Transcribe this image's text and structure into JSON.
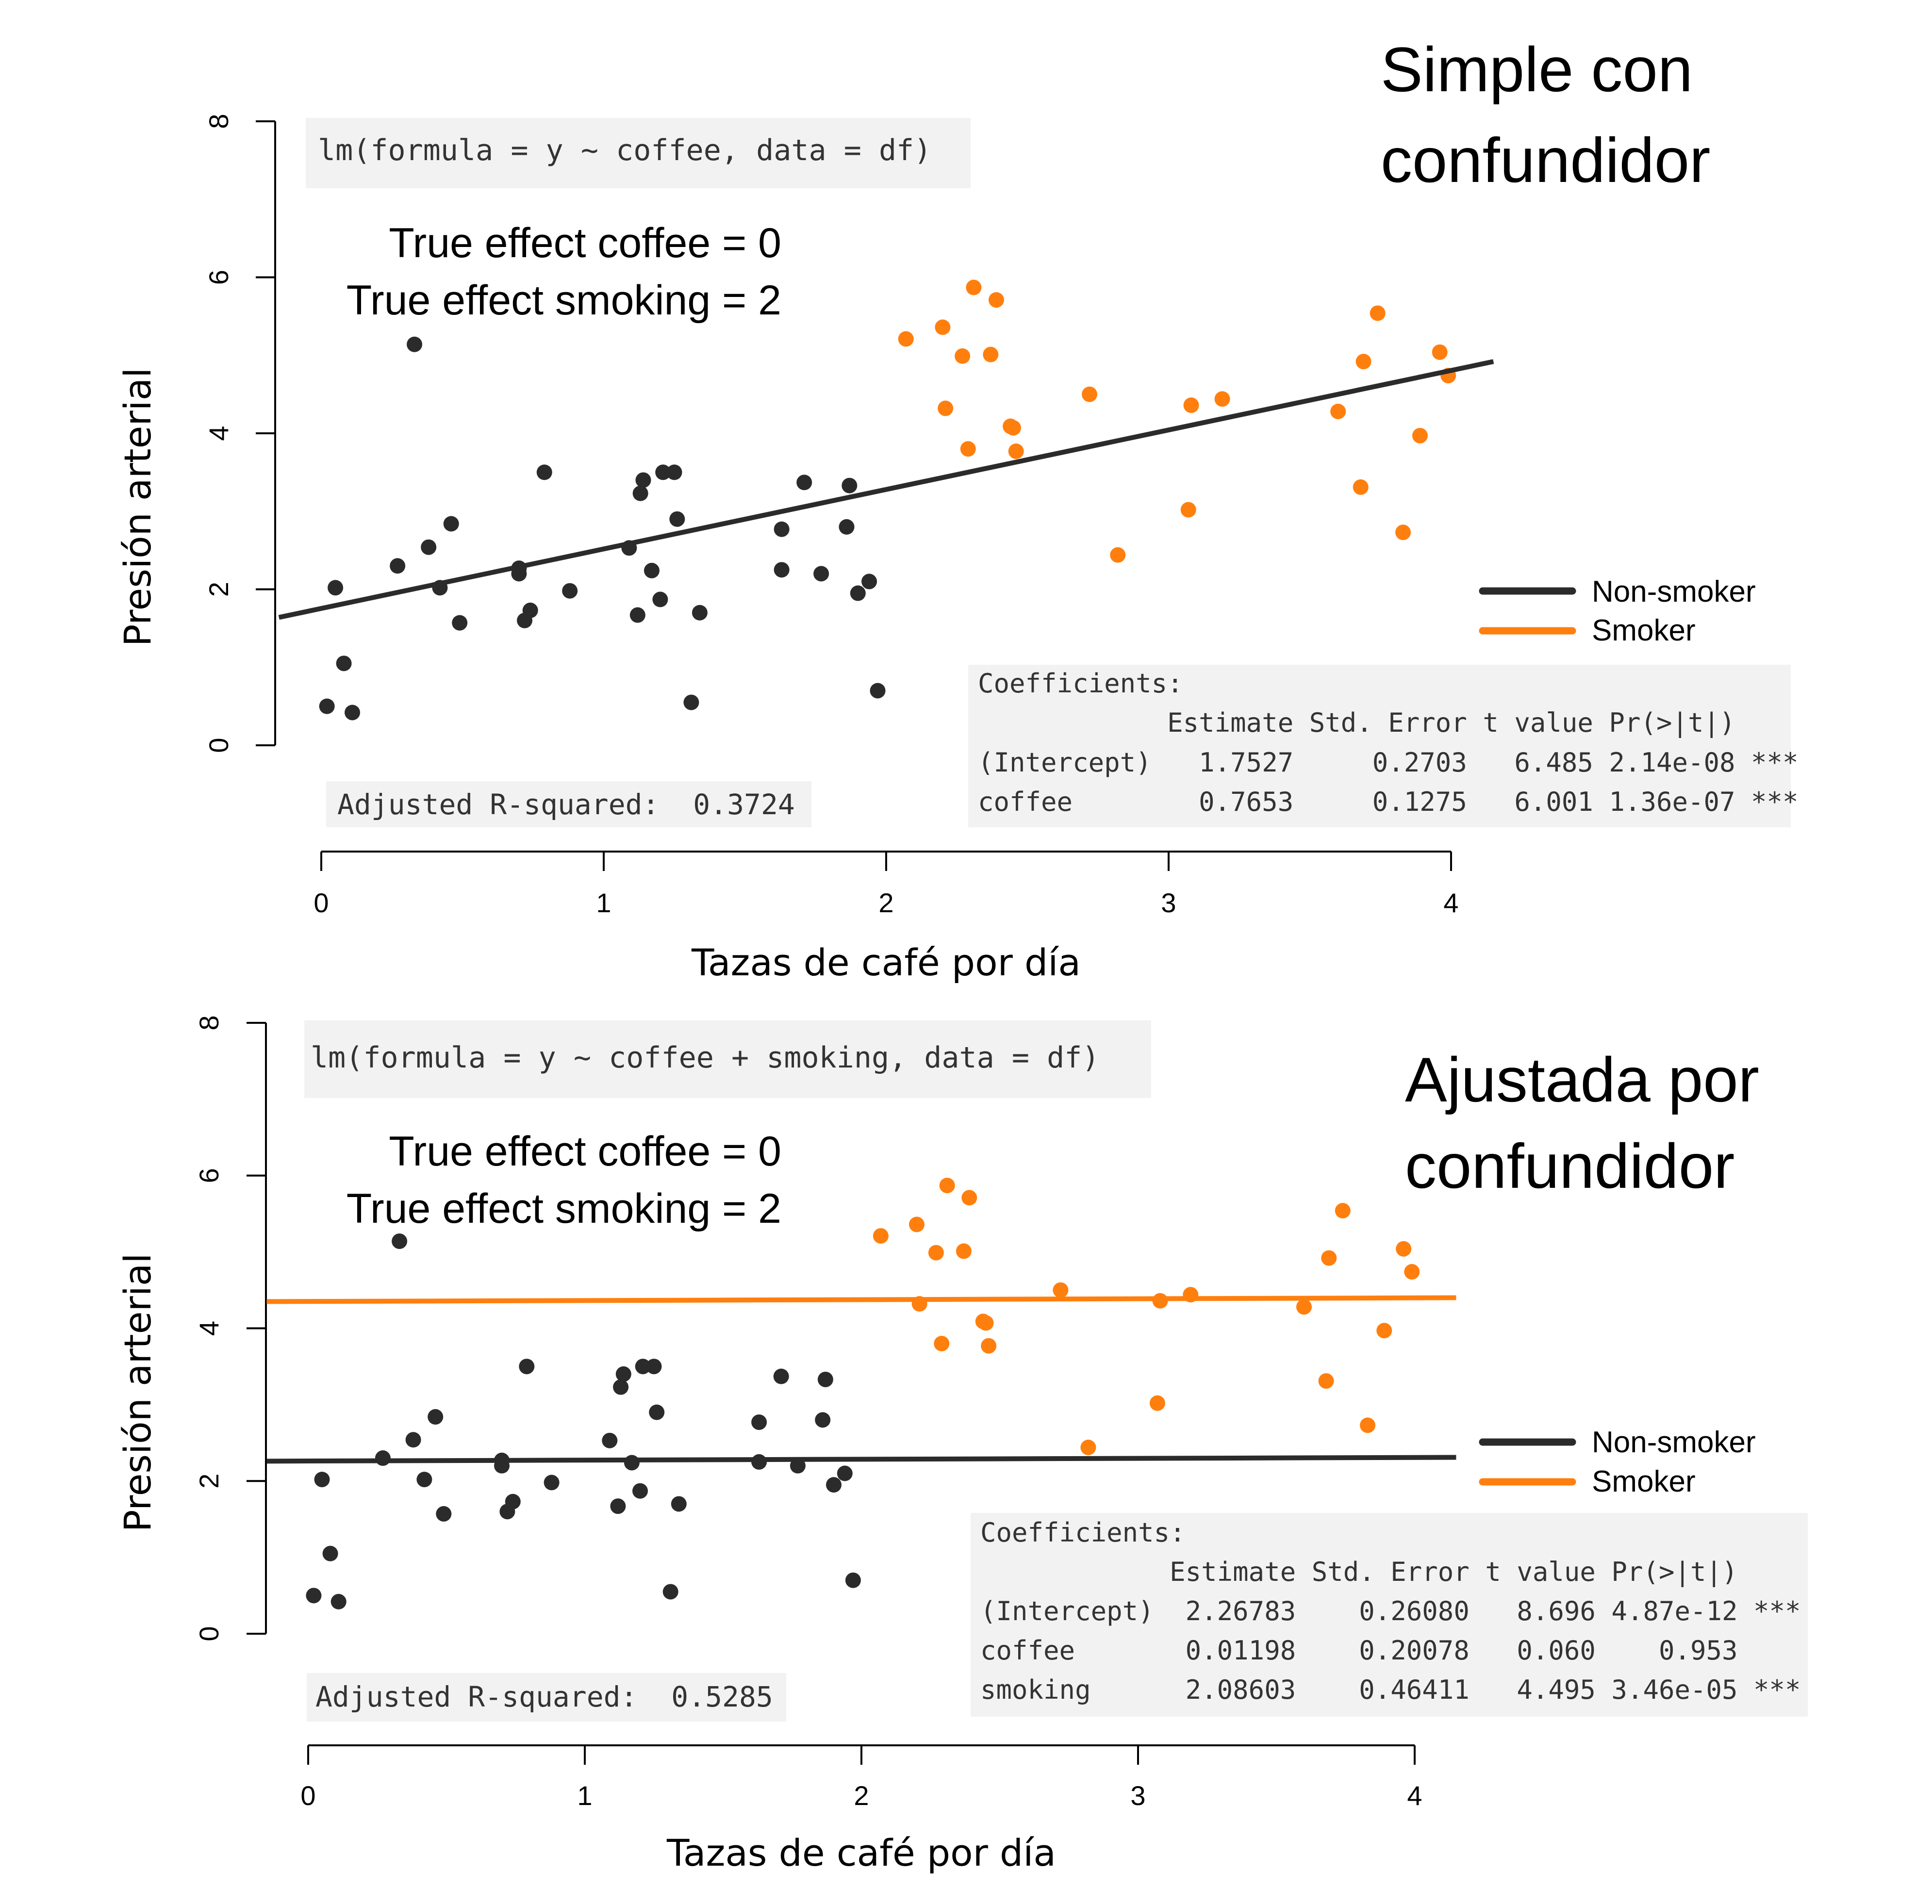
{
  "colors": {
    "non_smoker": "#2b2b2b",
    "smoker": "#ff7f0e",
    "code_bg": "#f2f2f2",
    "code_text": "#333333"
  },
  "legend": {
    "entries": [
      {
        "label": "Non-smoker",
        "color": "#2b2b2b"
      },
      {
        "label": "Smoker",
        "color": "#ff7f0e"
      }
    ],
    "placement": "right"
  },
  "panels": [
    {
      "heading": [
        "Simple con",
        "confundidor"
      ],
      "formula": "lm(formula = y ~ coffee, data = df)",
      "true_effects": [
        "True effect coffee = 0",
        "True effect smoking = 2"
      ],
      "adjusted_r2": "Adjusted R-squared:  0.3724",
      "coefficients": [
        "Coefficients:",
        "            Estimate Std. Error t value Pr(>|t|)",
        "(Intercept)   1.7527     0.2703   6.485 2.14e-08 ***",
        "coffee        0.7653     0.1275   6.001 1.36e-07 ***"
      ]
    },
    {
      "heading": [
        "Ajustada por",
        "confundidor"
      ],
      "formula": "lm(formula = y ~ coffee + smoking, data = df)",
      "true_effects": [
        "True effect coffee = 0",
        "True effect smoking = 2"
      ],
      "adjusted_r2": "Adjusted R-squared:  0.5285",
      "coefficients": [
        "Coefficients:",
        "            Estimate Std. Error t value Pr(>|t|)",
        "(Intercept)  2.26783    0.26080   8.696 4.87e-12 ***",
        "coffee       0.01198    0.20078   0.060    0.953",
        "smoking      2.08603    0.46411   4.495 3.46e-05 ***"
      ]
    }
  ],
  "chart_data": [
    {
      "type": "scatter",
      "xlabel": "Tazas de café por día",
      "ylabel": "Presión arterial",
      "xlim": [
        0,
        4
      ],
      "ylim": [
        0,
        8
      ],
      "xticks": [
        "0",
        "1",
        "2",
        "3",
        "4"
      ],
      "yticks": [
        "0",
        "2",
        "4",
        "6",
        "8"
      ],
      "series": [
        {
          "name": "Non-smoker",
          "color": "#2b2b2b",
          "points": [
            [
              0.02,
              0.5
            ],
            [
              0.05,
              2.02
            ],
            [
              0.08,
              1.05
            ],
            [
              0.11,
              0.42
            ],
            [
              0.27,
              2.3
            ],
            [
              0.33,
              5.14
            ],
            [
              0.38,
              2.54
            ],
            [
              0.42,
              2.02
            ],
            [
              0.46,
              2.84
            ],
            [
              0.49,
              1.57
            ],
            [
              0.7,
              2.27
            ],
            [
              0.7,
              2.2
            ],
            [
              0.72,
              1.6
            ],
            [
              0.74,
              1.73
            ],
            [
              0.79,
              3.5
            ],
            [
              0.88,
              1.98
            ],
            [
              1.09,
              2.53
            ],
            [
              1.12,
              1.67
            ],
            [
              1.13,
              3.23
            ],
            [
              1.14,
              3.4
            ],
            [
              1.17,
              2.24
            ],
            [
              1.2,
              1.87
            ],
            [
              1.21,
              3.5
            ],
            [
              1.25,
              3.5
            ],
            [
              1.26,
              2.9
            ],
            [
              1.31,
              0.55
            ],
            [
              1.34,
              1.7
            ],
            [
              1.63,
              2.77
            ],
            [
              1.63,
              2.25
            ],
            [
              1.71,
              3.37
            ],
            [
              1.77,
              2.2
            ],
            [
              1.86,
              2.8
            ],
            [
              1.87,
              3.33
            ],
            [
              1.9,
              1.95
            ],
            [
              1.94,
              2.1
            ],
            [
              1.97,
              0.7
            ]
          ],
          "fit_line": {
            "x": [
              -0.15,
              4.15
            ],
            "y": [
              1.64,
              4.92
            ]
          }
        },
        {
          "name": "Smoker",
          "color": "#ff7f0e",
          "points": [
            [
              2.07,
              5.21
            ],
            [
              2.2,
              5.36
            ],
            [
              2.21,
              4.32
            ],
            [
              2.27,
              4.99
            ],
            [
              2.29,
              3.8
            ],
            [
              2.31,
              5.87
            ],
            [
              2.37,
              5.01
            ],
            [
              2.39,
              5.71
            ],
            [
              2.44,
              4.09
            ],
            [
              2.45,
              4.07
            ],
            [
              2.46,
              3.77
            ],
            [
              2.72,
              4.5
            ],
            [
              2.82,
              2.44
            ],
            [
              3.07,
              3.02
            ],
            [
              3.08,
              4.36
            ],
            [
              3.19,
              4.44
            ],
            [
              3.6,
              4.28
            ],
            [
              3.68,
              3.31
            ],
            [
              3.69,
              4.92
            ],
            [
              3.74,
              5.54
            ],
            [
              3.83,
              2.73
            ],
            [
              3.89,
              3.97
            ],
            [
              3.96,
              5.04
            ],
            [
              3.99,
              4.74
            ]
          ]
        }
      ]
    },
    {
      "type": "scatter",
      "xlabel": "Tazas de café por día",
      "ylabel": "Presión arterial",
      "xlim": [
        0,
        4
      ],
      "ylim": [
        0,
        8
      ],
      "xticks": [
        "0",
        "1",
        "2",
        "3",
        "4"
      ],
      "yticks": [
        "0",
        "2",
        "4",
        "6",
        "8"
      ],
      "series": [
        {
          "name": "Non-smoker",
          "color": "#2b2b2b",
          "points": [
            [
              0.02,
              0.5
            ],
            [
              0.05,
              2.02
            ],
            [
              0.08,
              1.05
            ],
            [
              0.11,
              0.42
            ],
            [
              0.27,
              2.3
            ],
            [
              0.33,
              5.14
            ],
            [
              0.38,
              2.54
            ],
            [
              0.42,
              2.02
            ],
            [
              0.46,
              2.84
            ],
            [
              0.49,
              1.57
            ],
            [
              0.7,
              2.27
            ],
            [
              0.7,
              2.2
            ],
            [
              0.72,
              1.6
            ],
            [
              0.74,
              1.73
            ],
            [
              0.79,
              3.5
            ],
            [
              0.88,
              1.98
            ],
            [
              1.09,
              2.53
            ],
            [
              1.12,
              1.67
            ],
            [
              1.13,
              3.23
            ],
            [
              1.14,
              3.4
            ],
            [
              1.17,
              2.24
            ],
            [
              1.2,
              1.87
            ],
            [
              1.21,
              3.5
            ],
            [
              1.25,
              3.5
            ],
            [
              1.26,
              2.9
            ],
            [
              1.31,
              0.55
            ],
            [
              1.34,
              1.7
            ],
            [
              1.63,
              2.77
            ],
            [
              1.63,
              2.25
            ],
            [
              1.71,
              3.37
            ],
            [
              1.77,
              2.2
            ],
            [
              1.86,
              2.8
            ],
            [
              1.87,
              3.33
            ],
            [
              1.9,
              1.95
            ],
            [
              1.94,
              2.1
            ],
            [
              1.97,
              0.7
            ]
          ],
          "fit_line": {
            "x": [
              -0.15,
              4.15
            ],
            "y": [
              2.26,
              2.31
            ]
          }
        },
        {
          "name": "Smoker",
          "color": "#ff7f0e",
          "points": [
            [
              2.07,
              5.21
            ],
            [
              2.2,
              5.36
            ],
            [
              2.21,
              4.32
            ],
            [
              2.27,
              4.99
            ],
            [
              2.29,
              3.8
            ],
            [
              2.31,
              5.87
            ],
            [
              2.37,
              5.01
            ],
            [
              2.39,
              5.71
            ],
            [
              2.44,
              4.09
            ],
            [
              2.45,
              4.07
            ],
            [
              2.46,
              3.77
            ],
            [
              2.72,
              4.5
            ],
            [
              2.82,
              2.44
            ],
            [
              3.07,
              3.02
            ],
            [
              3.08,
              4.36
            ],
            [
              3.19,
              4.44
            ],
            [
              3.6,
              4.28
            ],
            [
              3.68,
              3.31
            ],
            [
              3.69,
              4.92
            ],
            [
              3.74,
              5.54
            ],
            [
              3.83,
              2.73
            ],
            [
              3.89,
              3.97
            ],
            [
              3.96,
              5.04
            ],
            [
              3.99,
              4.74
            ]
          ],
          "fit_line": {
            "x": [
              -0.15,
              4.15
            ],
            "y": [
              4.35,
              4.4
            ]
          }
        }
      ]
    }
  ]
}
